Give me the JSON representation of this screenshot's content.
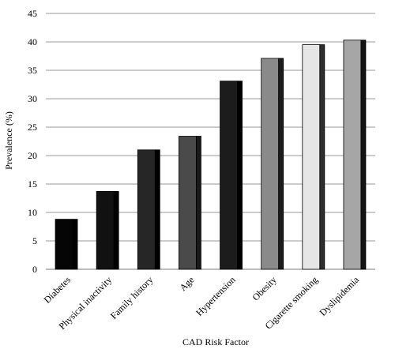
{
  "chart_data": {
    "type": "bar",
    "xlabel": "CAD Risk Factor",
    "ylabel": "Prevalence (%)",
    "ylim": [
      0,
      45
    ],
    "yticks": [
      0,
      5,
      10,
      15,
      20,
      25,
      30,
      35,
      40,
      45
    ],
    "grid": true,
    "categories": [
      "Diabetes",
      "Physical inactivity",
      "Family history",
      "Age",
      "Hypertension",
      "Obesity",
      "Cigarette smoking",
      "Dyslipidemia"
    ],
    "values": [
      8.8,
      13.7,
      21.0,
      23.4,
      33.1,
      37.1,
      39.5,
      40.3
    ],
    "colors": [
      "#050505",
      "#111111",
      "#262626",
      "#4a4a4a",
      "#1c1c1c",
      "#8a8a8a",
      "#e6e6e6",
      "#a6a6a6"
    ],
    "side_colors": [
      "#000000",
      "#000000",
      "#000000",
      "#1a1a1a",
      "#000000",
      "#1c1c1c",
      "#2e2e2e",
      "#141414"
    ]
  }
}
